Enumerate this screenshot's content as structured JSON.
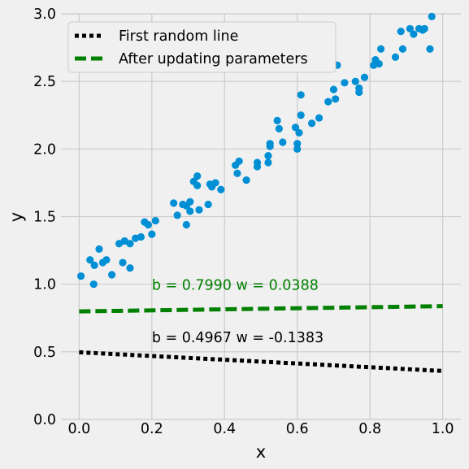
{
  "chart_data": {
    "type": "scatter",
    "xlabel": "x",
    "ylabel": "y",
    "xlim": [
      -0.05,
      1.05
    ],
    "ylim": [
      0.0,
      3.0
    ],
    "xticks": [
      0.0,
      0.2,
      0.4,
      0.6,
      0.8,
      1.0
    ],
    "xtick_labels": [
      "0.0",
      "0.2",
      "0.4",
      "0.6",
      "0.8",
      "1.0"
    ],
    "yticks": [
      0.0,
      0.5,
      1.0,
      1.5,
      2.0,
      2.5,
      3.0
    ],
    "ytick_labels": [
      "0.0",
      "0.5",
      "1.0",
      "1.5",
      "2.0",
      "2.5",
      "3.0"
    ],
    "grid": true,
    "legend_position": "top-left",
    "scatter": {
      "color": "#008fd5",
      "points": [
        [
          0.005,
          1.06
        ],
        [
          0.03,
          1.18
        ],
        [
          0.04,
          1.0
        ],
        [
          0.042,
          1.14
        ],
        [
          0.055,
          1.26
        ],
        [
          0.065,
          1.16
        ],
        [
          0.075,
          1.18
        ],
        [
          0.09,
          1.07
        ],
        [
          0.11,
          1.3
        ],
        [
          0.12,
          1.16
        ],
        [
          0.125,
          1.32
        ],
        [
          0.14,
          1.12
        ],
        [
          0.14,
          1.3
        ],
        [
          0.155,
          1.34
        ],
        [
          0.17,
          1.35
        ],
        [
          0.18,
          1.46
        ],
        [
          0.19,
          1.44
        ],
        [
          0.2,
          1.37
        ],
        [
          0.21,
          1.47
        ],
        [
          0.26,
          1.6
        ],
        [
          0.27,
          1.51
        ],
        [
          0.285,
          1.59
        ],
        [
          0.295,
          1.44
        ],
        [
          0.295,
          1.58
        ],
        [
          0.305,
          1.54
        ],
        [
          0.305,
          1.61
        ],
        [
          0.315,
          1.76
        ],
        [
          0.325,
          1.73
        ],
        [
          0.325,
          1.8
        ],
        [
          0.33,
          1.55
        ],
        [
          0.355,
          1.59
        ],
        [
          0.36,
          1.74
        ],
        [
          0.365,
          1.72
        ],
        [
          0.375,
          1.75
        ],
        [
          0.39,
          1.7
        ],
        [
          0.43,
          1.88
        ],
        [
          0.435,
          1.82
        ],
        [
          0.44,
          1.91
        ],
        [
          0.46,
          1.77
        ],
        [
          0.49,
          1.9
        ],
        [
          0.49,
          1.87
        ],
        [
          0.52,
          1.95
        ],
        [
          0.52,
          1.9
        ],
        [
          0.525,
          2.04
        ],
        [
          0.525,
          2.02
        ],
        [
          0.545,
          2.21
        ],
        [
          0.55,
          2.15
        ],
        [
          0.56,
          2.05
        ],
        [
          0.595,
          2.16
        ],
        [
          0.6,
          2.04
        ],
        [
          0.6,
          2.0
        ],
        [
          0.605,
          2.12
        ],
        [
          0.61,
          2.25
        ],
        [
          0.61,
          2.4
        ],
        [
          0.64,
          2.19
        ],
        [
          0.66,
          2.23
        ],
        [
          0.685,
          2.35
        ],
        [
          0.7,
          2.44
        ],
        [
          0.705,
          2.37
        ],
        [
          0.71,
          2.62
        ],
        [
          0.73,
          2.49
        ],
        [
          0.76,
          2.5
        ],
        [
          0.77,
          2.42
        ],
        [
          0.77,
          2.45
        ],
        [
          0.785,
          2.53
        ],
        [
          0.81,
          2.62
        ],
        [
          0.815,
          2.66
        ],
        [
          0.825,
          2.63
        ],
        [
          0.83,
          2.74
        ],
        [
          0.87,
          2.68
        ],
        [
          0.885,
          2.87
        ],
        [
          0.89,
          2.74
        ],
        [
          0.91,
          2.89
        ],
        [
          0.92,
          2.85
        ],
        [
          0.935,
          2.89
        ],
        [
          0.945,
          2.88
        ],
        [
          0.95,
          2.89
        ],
        [
          0.965,
          2.74
        ],
        [
          0.97,
          2.98
        ]
      ]
    },
    "lines": [
      {
        "name": "First random line",
        "color": "#000000",
        "style": "dotted",
        "b": 0.4967,
        "w": -0.1383
      },
      {
        "name": "After updating parameters",
        "color": "#008000",
        "style": "dashed",
        "b": 0.799,
        "w": 0.0388
      }
    ],
    "annotations": [
      {
        "text": "b = 0.4967 w = -0.1383",
        "x": 0.2,
        "y": 0.57,
        "color": "#000000"
      },
      {
        "text": "b = 0.7990 w = 0.0388",
        "x": 0.2,
        "y": 0.96,
        "color": "#008000"
      }
    ]
  }
}
